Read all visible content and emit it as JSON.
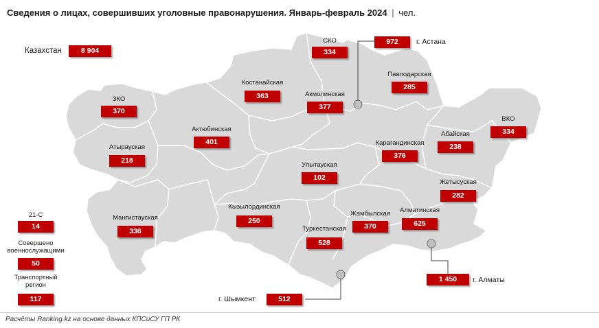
{
  "title": {
    "text": "Сведения о лицах, совершивших уголовные правонарушения. Январь-февраль 2024",
    "separator": "|",
    "unit": "чел."
  },
  "total": {
    "label": "Казахстан",
    "value": "8 904"
  },
  "regions": {
    "sko": {
      "label": "СКО",
      "value": "334"
    },
    "kostanay": {
      "label": "Костанайская",
      "value": "363"
    },
    "akmola": {
      "label": "Акмолинская",
      "value": "377"
    },
    "pavlodar": {
      "label": "Павлодарская",
      "value": "285"
    },
    "zko": {
      "label": "ЗКО",
      "value": "370"
    },
    "aktobe": {
      "label": "Актюбинская",
      "value": "401"
    },
    "atyrau": {
      "label": "Атырауская",
      "value": "218"
    },
    "karaganda": {
      "label": "Карагандинская",
      "value": "376"
    },
    "abay": {
      "label": "Абайская",
      "value": "238"
    },
    "vko": {
      "label": "ВКО",
      "value": "334"
    },
    "ulytau": {
      "label": "Улытауская",
      "value": "102"
    },
    "zhetysu": {
      "label": "Жетысуская",
      "value": "282"
    },
    "mangystau": {
      "label": "Мангистауская",
      "value": "336"
    },
    "kyzylorda": {
      "label": "Кызылординская",
      "value": "250"
    },
    "zhambyl": {
      "label": "Жамбылская",
      "value": "370"
    },
    "almaty_reg": {
      "label": "Алматинская",
      "value": "625"
    },
    "turkestan": {
      "label": "Туркестанская",
      "value": "528"
    }
  },
  "cities": {
    "astana": {
      "label": "г. Астана",
      "value": "972"
    },
    "almaty": {
      "label": "г. Алматы",
      "value": "1 450"
    },
    "shymkent": {
      "label": "г. Шымкент",
      "value": "512"
    }
  },
  "other": {
    "c21": {
      "label": "21-С",
      "value": "14"
    },
    "military": {
      "label_line1": "Совершено",
      "label_line2": "военнослужащими",
      "value": "50"
    },
    "transport": {
      "label_line1": "Транспортный",
      "label_line2": "регион",
      "value": "117"
    }
  },
  "source": "Расчёты Ranking.kz на основе данных КПСиСУ ГП РК",
  "colors": {
    "value_box": "#c00000",
    "map_fill": "#d9d9d9",
    "region_border": "#ffffff",
    "city_marker": "#bfbfbf"
  }
}
